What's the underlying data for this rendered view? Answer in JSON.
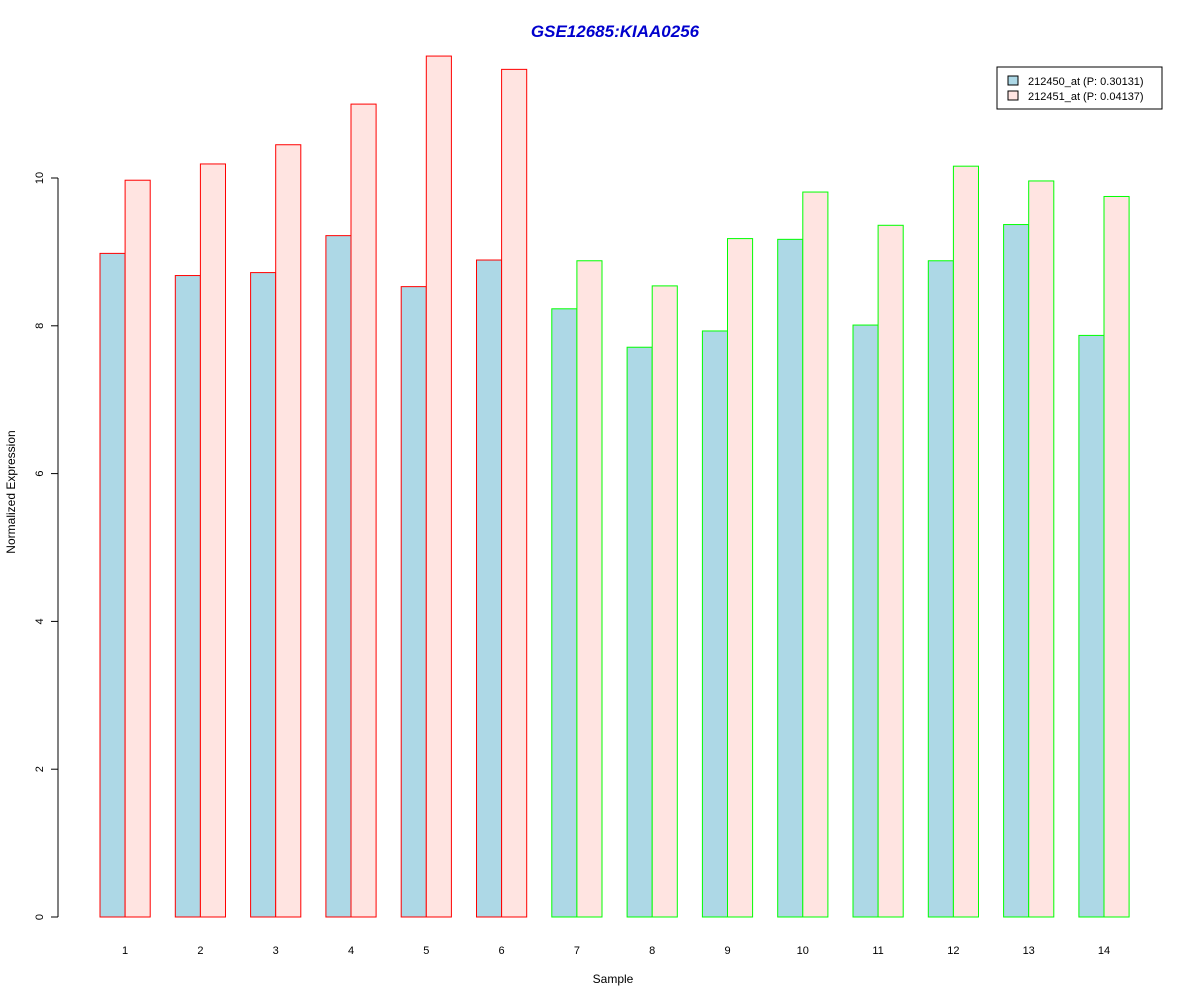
{
  "chart_data": {
    "type": "bar",
    "title": "GSE12685:KIAA0256",
    "xlabel": "Sample",
    "ylabel": "Normalized Expression",
    "categories": [
      "1",
      "2",
      "3",
      "4",
      "5",
      "6",
      "7",
      "8",
      "9",
      "10",
      "11",
      "12",
      "13",
      "14"
    ],
    "series": [
      {
        "name": "212450_at (P: 0.30131)",
        "fill": "#add8e6",
        "values": [
          8.98,
          8.68,
          8.72,
          9.22,
          8.53,
          8.89,
          8.23,
          7.71,
          7.93,
          9.17,
          8.01,
          8.88,
          9.37,
          7.87
        ]
      },
      {
        "name": "212451_at (P: 0.04137)",
        "fill": "#ffe4e1",
        "values": [
          9.97,
          10.19,
          10.45,
          11.0,
          11.65,
          11.47,
          8.88,
          8.54,
          9.18,
          9.81,
          9.36,
          10.16,
          9.96,
          9.75
        ]
      }
    ],
    "group_border_colors": [
      "#ff0000",
      "#ff0000",
      "#ff0000",
      "#ff0000",
      "#ff0000",
      "#ff0000",
      "#00ff00",
      "#00ff00",
      "#00ff00",
      "#00ff00",
      "#00ff00",
      "#00ff00",
      "#00ff00",
      "#00ff00"
    ],
    "yticks": [
      "0",
      "2",
      "4",
      "6",
      "8",
      "10"
    ],
    "ylim": [
      0,
      11.65
    ],
    "legend_position": "top-right",
    "grid": false,
    "title_color": "#0000cd"
  }
}
